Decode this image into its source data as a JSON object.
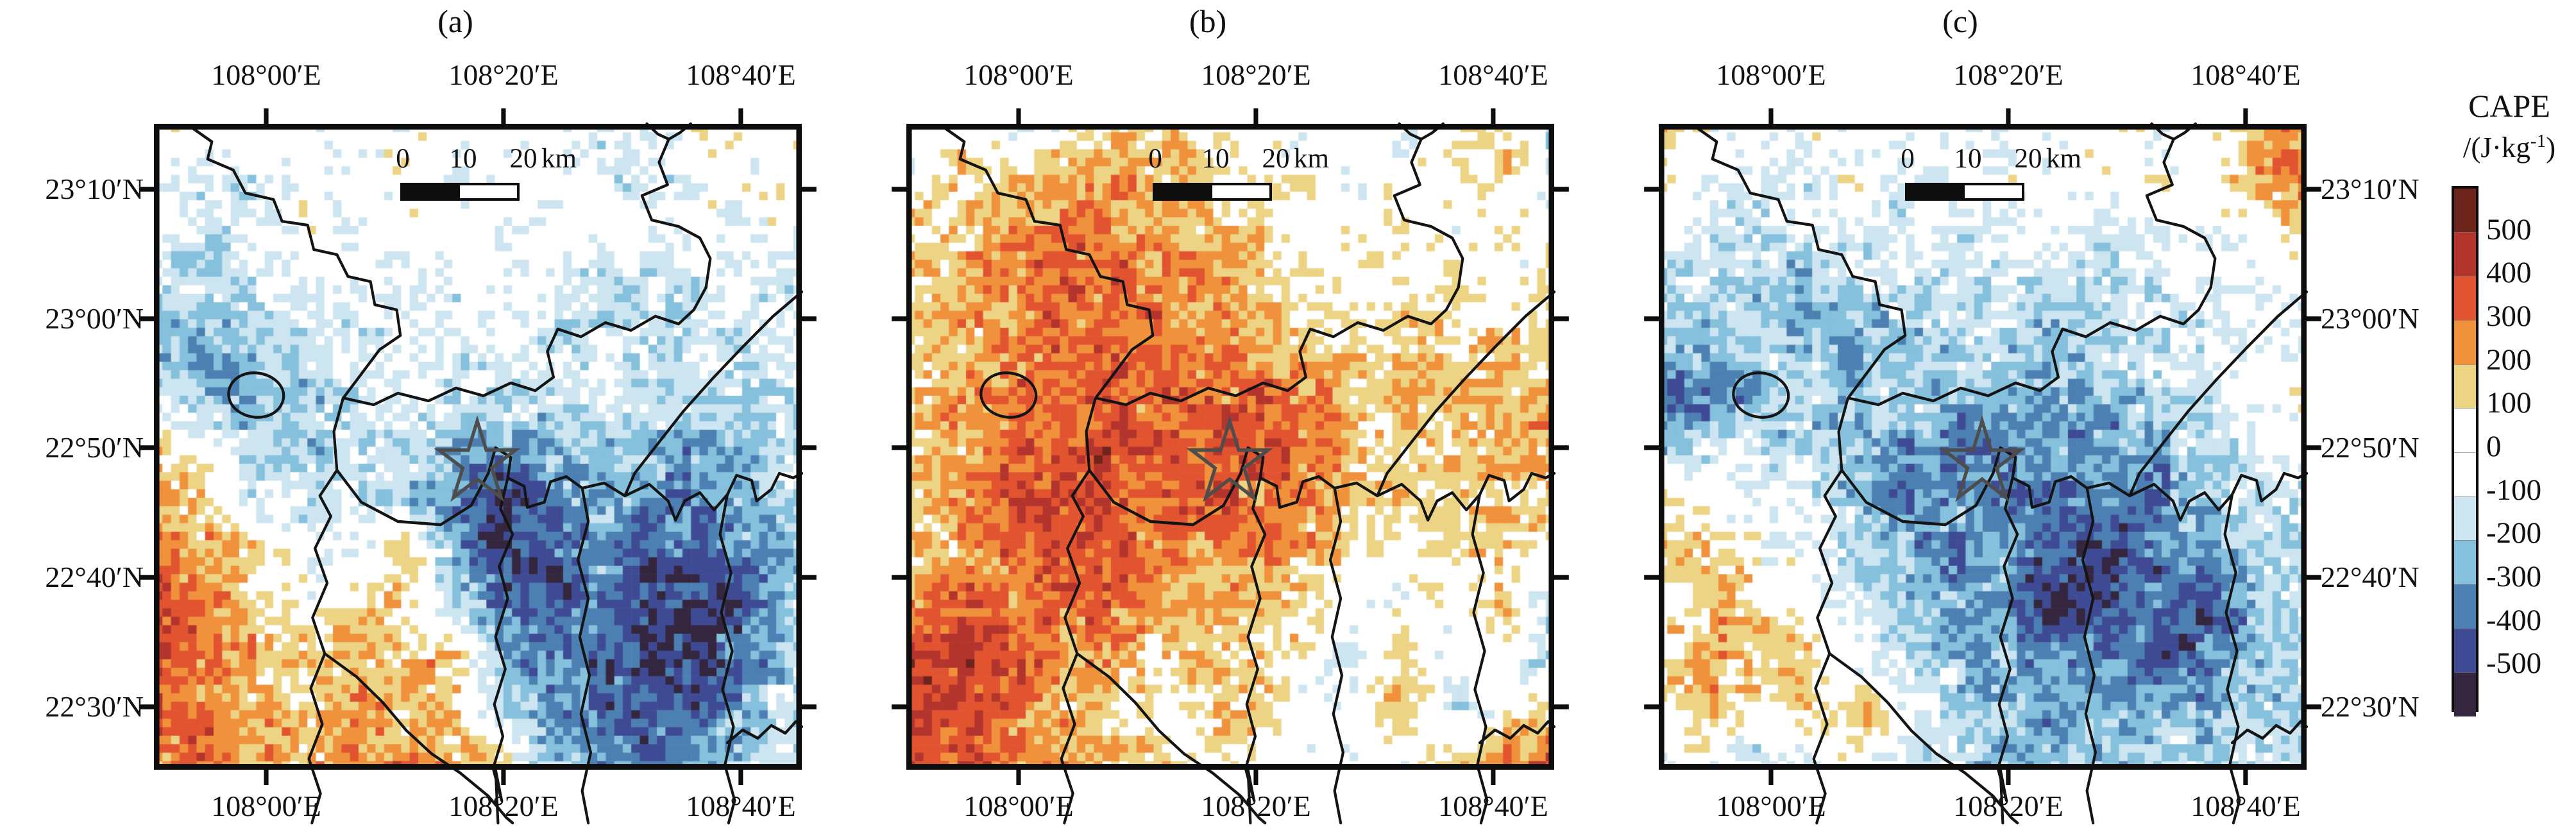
{
  "figure": {
    "panels": [
      {
        "label": "(a)"
      },
      {
        "label": "(b)"
      },
      {
        "label": "(c)"
      }
    ]
  },
  "axes": {
    "lon_ticks": [
      "108°00′E",
      "108°20′E",
      "108°40′E"
    ],
    "lat_ticks": [
      "23°10′N",
      "23°00′N",
      "22°50′N",
      "22°40′N",
      "22°30′N"
    ]
  },
  "scalebar": {
    "tick_labels": [
      "0",
      "10",
      "20"
    ],
    "unit": "km"
  },
  "marker": {
    "shape": "star"
  },
  "colorbar": {
    "title": "CAPE",
    "unit_prefix": "/(J·kg",
    "unit_sup": "-1",
    "unit_suffix": ")",
    "tick_labels": [
      "500",
      "400",
      "300",
      "200",
      "100",
      "0",
      "-100",
      "-200",
      "-300",
      "-400",
      "-500"
    ],
    "levels": [
      -500,
      -400,
      -300,
      -200,
      -100,
      0,
      100,
      200,
      300,
      400,
      500
    ],
    "colors_top_to_bottom": [
      "#6d241b",
      "#b3342c",
      "#e25430",
      "#f0913c",
      "#edd485",
      "#ffffff",
      "#ffffff",
      "#cde5f0",
      "#85c0dc",
      "#4d80b2",
      "#3e4b94",
      "#35263f"
    ]
  },
  "chart_data": {
    "type": "heatmap",
    "title": "CAPE anomaly maps, panels (a)(b)(c)",
    "units": "J·kg-1",
    "lon_axis": [
      "108°00′E",
      "108°20′E",
      "108°40′E"
    ],
    "lat_axis": [
      "23°10′N",
      "23°00′N",
      "22°50′N",
      "22°40′N",
      "22°30′N"
    ],
    "legend_position": "right",
    "panels": [
      {
        "label": "(a)",
        "grid": [
          [
            0,
            0,
            -50,
            0,
            0,
            0,
            -30,
            0,
            0,
            -120,
            -80,
            0,
            0,
            0
          ],
          [
            0,
            -130,
            -100,
            0,
            0,
            0,
            -120,
            0,
            0,
            -60,
            -130,
            -60,
            0,
            0
          ],
          [
            -80,
            -150,
            -60,
            0,
            -40,
            0,
            0,
            -60,
            0,
            0,
            -80,
            0,
            0,
            -50
          ],
          [
            -150,
            -200,
            -120,
            -60,
            0,
            -130,
            -60,
            0,
            -60,
            -120,
            -150,
            -120,
            -80,
            -120
          ],
          [
            -250,
            -280,
            -220,
            -150,
            -120,
            -60,
            -120,
            -60,
            -130,
            -150,
            -150,
            -130,
            -150,
            -130
          ],
          [
            -150,
            -250,
            -280,
            -200,
            -130,
            -60,
            -100,
            -130,
            -150,
            -130,
            -120,
            -130,
            -150,
            -150
          ],
          [
            150,
            -60,
            -200,
            -250,
            -150,
            -130,
            -250,
            -300,
            -250,
            -200,
            -250,
            -280,
            -250,
            -150
          ],
          [
            250,
            180,
            -100,
            -150,
            -130,
            -200,
            -350,
            -480,
            -350,
            -280,
            -350,
            -300,
            -280,
            -200
          ],
          [
            280,
            220,
            150,
            0,
            -60,
            150,
            -250,
            -520,
            -420,
            -300,
            -420,
            -380,
            -350,
            -250
          ],
          [
            380,
            280,
            160,
            0,
            130,
            160,
            -150,
            -350,
            -450,
            -350,
            -450,
            -520,
            -420,
            -200
          ],
          [
            420,
            300,
            180,
            150,
            160,
            200,
            150,
            -250,
            -380,
            -420,
            -550,
            -480,
            -350,
            -150
          ],
          [
            350,
            280,
            200,
            150,
            250,
            180,
            160,
            -150,
            -300,
            -350,
            -450,
            -380,
            -250,
            -130
          ],
          [
            300,
            320,
            250,
            180,
            280,
            300,
            200,
            150,
            -200,
            -280,
            -350,
            -300,
            -200,
            -130
          ]
        ]
      },
      {
        "label": "(b)",
        "grid": [
          [
            0,
            0,
            -60,
            0,
            130,
            150,
            60,
            0,
            0,
            0,
            -60,
            0,
            150,
            -130
          ],
          [
            0,
            130,
            150,
            180,
            250,
            220,
            150,
            130,
            0,
            0,
            0,
            0,
            130,
            -100
          ],
          [
            130,
            150,
            250,
            320,
            280,
            250,
            200,
            150,
            0,
            0,
            130,
            0,
            0,
            0
          ],
          [
            150,
            200,
            280,
            350,
            300,
            280,
            250,
            150,
            130,
            0,
            0,
            130,
            0,
            130
          ],
          [
            130,
            180,
            250,
            300,
            320,
            280,
            280,
            200,
            150,
            130,
            150,
            130,
            150,
            130
          ],
          [
            150,
            250,
            280,
            320,
            350,
            320,
            300,
            350,
            280,
            150,
            130,
            150,
            200,
            150
          ],
          [
            130,
            200,
            300,
            350,
            380,
            350,
            320,
            380,
            320,
            200,
            150,
            130,
            250,
            200
          ],
          [
            150,
            250,
            350,
            380,
            350,
            320,
            350,
            320,
            250,
            150,
            130,
            150,
            150,
            130
          ],
          [
            130,
            200,
            280,
            350,
            400,
            300,
            280,
            250,
            200,
            130,
            0,
            130,
            130,
            0
          ],
          [
            250,
            350,
            300,
            280,
            320,
            250,
            200,
            150,
            130,
            -60,
            0,
            0,
            130,
            -100
          ],
          [
            380,
            420,
            350,
            250,
            200,
            130,
            150,
            130,
            0,
            -80,
            150,
            -60,
            0,
            -130
          ],
          [
            420,
            380,
            300,
            200,
            130,
            0,
            130,
            150,
            -80,
            0,
            160,
            -100,
            0,
            130
          ],
          [
            380,
            350,
            280,
            250,
            150,
            130,
            0,
            130,
            0,
            -60,
            0,
            130,
            280,
            330
          ]
        ]
      },
      {
        "label": "(c)",
        "grid": [
          [
            130,
            0,
            -60,
            0,
            -120,
            0,
            0,
            -60,
            0,
            0,
            0,
            0,
            200,
            250
          ],
          [
            0,
            -60,
            -130,
            -60,
            0,
            -130,
            -60,
            0,
            -60,
            0,
            0,
            0,
            150,
            300
          ],
          [
            -60,
            -130,
            -150,
            -130,
            -130,
            -60,
            -130,
            -130,
            0,
            -130,
            -60,
            0,
            0,
            130
          ],
          [
            -130,
            -150,
            -250,
            -250,
            -150,
            -130,
            -150,
            -130,
            -130,
            -150,
            -130,
            -60,
            -130,
            0
          ],
          [
            -200,
            -250,
            -150,
            -250,
            -300,
            -250,
            -150,
            -150,
            -250,
            -150,
            -130,
            -130,
            -60,
            -130
          ],
          [
            -350,
            -420,
            -250,
            -200,
            -250,
            -150,
            -250,
            -300,
            -250,
            -250,
            -150,
            -130,
            0,
            130
          ],
          [
            -250,
            -150,
            -130,
            -150,
            -250,
            -350,
            -380,
            -350,
            -300,
            -350,
            -250,
            -200,
            -130,
            -60
          ],
          [
            130,
            0,
            -60,
            -130,
            -250,
            -350,
            -300,
            -350,
            -380,
            -300,
            -350,
            -250,
            -150,
            -130
          ],
          [
            150,
            130,
            0,
            -60,
            -150,
            -250,
            -350,
            -300,
            -450,
            -520,
            -380,
            -300,
            -200,
            -150
          ],
          [
            0,
            200,
            130,
            0,
            -130,
            -250,
            -300,
            -350,
            -550,
            -450,
            -350,
            -450,
            -300,
            -150
          ],
          [
            130,
            250,
            150,
            130,
            -60,
            -150,
            -250,
            -300,
            -350,
            -300,
            -450,
            -350,
            -250,
            -130
          ],
          [
            0,
            130,
            0,
            150,
            200,
            -60,
            -150,
            -250,
            -300,
            -250,
            -300,
            -250,
            -200,
            -150
          ],
          [
            -60,
            0,
            -130,
            -60,
            0,
            -130,
            -200,
            -250,
            -200,
            -250,
            -150,
            -200,
            -150,
            -130
          ]
        ]
      }
    ]
  }
}
